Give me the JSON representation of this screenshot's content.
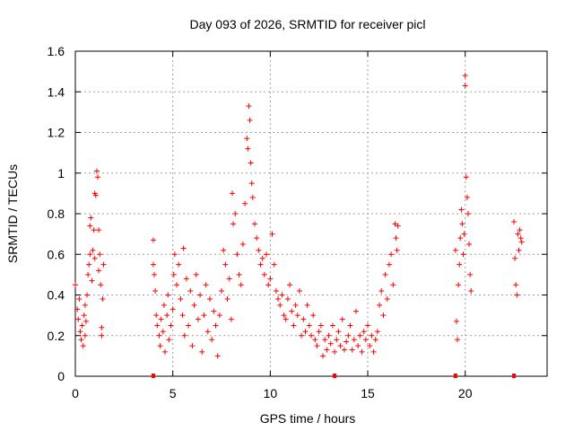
{
  "chart_data": {
    "type": "scatter",
    "title": "Day 093 of 2026, SRMTID for receiver picl",
    "xlabel": "GPS time / hours",
    "ylabel": "SRMTID / TECUs",
    "xlim": [
      0,
      24.2
    ],
    "ylim": [
      0,
      1.6
    ],
    "x_ticks": [
      0,
      5,
      10,
      15,
      20
    ],
    "x_tick_labels": [
      "0",
      "5",
      "10",
      "15",
      "20"
    ],
    "y_ticks": [
      0,
      0.2,
      0.4,
      0.6,
      0.8,
      1.0,
      1.2,
      1.4,
      1.6
    ],
    "y_tick_labels": [
      "0",
      "0.2",
      "0.4",
      "0.6",
      "0.8",
      "1",
      "1.2",
      "1.4",
      "1.6"
    ],
    "grid": true,
    "marker": "+",
    "marker_color": "#ff0000",
    "series": [
      {
        "name": "SRMTID",
        "points": [
          [
            0.0,
            0.45
          ],
          [
            0.1,
            0.33
          ],
          [
            0.15,
            0.28
          ],
          [
            0.2,
            0.38
          ],
          [
            0.25,
            0.22
          ],
          [
            0.3,
            0.18
          ],
          [
            0.35,
            0.25
          ],
          [
            0.4,
            0.15
          ],
          [
            0.45,
            0.3
          ],
          [
            0.5,
            0.2
          ],
          [
            0.5,
            0.35
          ],
          [
            0.55,
            0.27
          ],
          [
            0.6,
            0.4
          ],
          [
            0.65,
            0.5
          ],
          [
            0.7,
            0.55
          ],
          [
            0.75,
            0.6
          ],
          [
            0.75,
            0.74
          ],
          [
            0.8,
            0.78
          ],
          [
            0.85,
            0.47
          ],
          [
            0.9,
            0.62
          ],
          [
            0.95,
            0.72
          ],
          [
            1.0,
            0.58
          ],
          [
            1.0,
            0.9
          ],
          [
            1.05,
            0.89
          ],
          [
            1.1,
            1.01
          ],
          [
            1.15,
            0.98
          ],
          [
            1.2,
            0.72
          ],
          [
            1.2,
            0.52
          ],
          [
            1.25,
            0.6
          ],
          [
            1.3,
            0.45
          ],
          [
            1.35,
            0.24
          ],
          [
            1.35,
            0.2
          ],
          [
            1.4,
            0.38
          ],
          [
            1.45,
            0.55
          ],
          [
            4.0,
            0.67
          ],
          [
            4.0,
            0.55
          ],
          [
            4.05,
            0.5
          ],
          [
            4.1,
            0.42
          ],
          [
            4.15,
            0.3
          ],
          [
            4.2,
            0.25
          ],
          [
            4.3,
            0.2
          ],
          [
            4.35,
            0.15
          ],
          [
            4.4,
            0.28
          ],
          [
            4.5,
            0.22
          ],
          [
            4.55,
            0.35
          ],
          [
            4.6,
            0.12
          ],
          [
            4.7,
            0.3
          ],
          [
            4.75,
            0.4
          ],
          [
            4.8,
            0.18
          ],
          [
            4.9,
            0.25
          ],
          [
            5.0,
            0.33
          ],
          [
            5.05,
            0.5
          ],
          [
            5.1,
            0.6
          ],
          [
            5.2,
            0.45
          ],
          [
            5.3,
            0.55
          ],
          [
            5.4,
            0.38
          ],
          [
            5.5,
            0.3
          ],
          [
            5.55,
            0.63
          ],
          [
            5.6,
            0.2
          ],
          [
            5.7,
            0.48
          ],
          [
            5.8,
            0.25
          ],
          [
            5.9,
            0.42
          ],
          [
            6.0,
            0.15
          ],
          [
            6.1,
            0.35
          ],
          [
            6.2,
            0.5
          ],
          [
            6.3,
            0.28
          ],
          [
            6.4,
            0.4
          ],
          [
            6.5,
            0.12
          ],
          [
            6.6,
            0.3
          ],
          [
            6.7,
            0.45
          ],
          [
            6.8,
            0.22
          ],
          [
            6.9,
            0.38
          ],
          [
            7.0,
            0.18
          ],
          [
            7.1,
            0.32
          ],
          [
            7.2,
            0.25
          ],
          [
            7.3,
            0.1
          ],
          [
            7.4,
            0.3
          ],
          [
            7.5,
            0.42
          ],
          [
            7.6,
            0.62
          ],
          [
            7.7,
            0.55
          ],
          [
            7.8,
            0.38
          ],
          [
            7.9,
            0.48
          ],
          [
            8.0,
            0.28
          ],
          [
            8.05,
            0.9
          ],
          [
            8.1,
            0.75
          ],
          [
            8.2,
            0.8
          ],
          [
            8.3,
            0.6
          ],
          [
            8.4,
            0.5
          ],
          [
            8.5,
            0.45
          ],
          [
            8.6,
            0.65
          ],
          [
            8.7,
            0.85
          ],
          [
            8.8,
            1.17
          ],
          [
            8.85,
            1.12
          ],
          [
            8.9,
            1.33
          ],
          [
            8.95,
            1.26
          ],
          [
            9.0,
            1.05
          ],
          [
            9.05,
            0.95
          ],
          [
            9.1,
            0.88
          ],
          [
            9.2,
            0.75
          ],
          [
            9.3,
            0.68
          ],
          [
            9.4,
            0.62
          ],
          [
            9.5,
            0.55
          ],
          [
            9.6,
            0.58
          ],
          [
            9.7,
            0.5
          ],
          [
            9.8,
            0.6
          ],
          [
            9.9,
            0.45
          ],
          [
            10.0,
            0.48
          ],
          [
            10.1,
            0.7
          ],
          [
            10.2,
            0.55
          ],
          [
            10.3,
            0.42
          ],
          [
            10.4,
            0.38
          ],
          [
            10.5,
            0.35
          ],
          [
            10.6,
            0.4
          ],
          [
            10.7,
            0.3
          ],
          [
            10.8,
            0.28
          ],
          [
            10.9,
            0.38
          ],
          [
            11.0,
            0.45
          ],
          [
            11.1,
            0.32
          ],
          [
            11.2,
            0.25
          ],
          [
            11.3,
            0.35
          ],
          [
            11.4,
            0.3
          ],
          [
            11.5,
            0.42
          ],
          [
            11.6,
            0.2
          ],
          [
            11.7,
            0.28
          ],
          [
            11.8,
            0.22
          ],
          [
            11.9,
            0.35
          ],
          [
            12.0,
            0.25
          ],
          [
            12.1,
            0.2
          ],
          [
            12.2,
            0.3
          ],
          [
            12.3,
            0.18
          ],
          [
            12.4,
            0.15
          ],
          [
            12.5,
            0.22
          ],
          [
            12.6,
            0.25
          ],
          [
            12.7,
            0.1
          ],
          [
            12.8,
            0.18
          ],
          [
            12.9,
            0.13
          ],
          [
            13.0,
            0.2
          ],
          [
            13.1,
            0.16
          ],
          [
            13.2,
            0.25
          ],
          [
            13.3,
            0.12
          ],
          [
            13.4,
            0.18
          ],
          [
            13.5,
            0.22
          ],
          [
            13.6,
            0.15
          ],
          [
            13.7,
            0.28
          ],
          [
            13.8,
            0.13
          ],
          [
            13.9,
            0.17
          ],
          [
            14.0,
            0.2
          ],
          [
            14.1,
            0.25
          ],
          [
            14.2,
            0.13
          ],
          [
            14.3,
            0.18
          ],
          [
            14.4,
            0.32
          ],
          [
            14.5,
            0.15
          ],
          [
            14.6,
            0.2
          ],
          [
            14.7,
            0.12
          ],
          [
            14.8,
            0.22
          ],
          [
            14.9,
            0.18
          ],
          [
            15.0,
            0.25
          ],
          [
            15.1,
            0.15
          ],
          [
            15.2,
            0.2
          ],
          [
            15.3,
            0.12
          ],
          [
            15.4,
            0.18
          ],
          [
            15.5,
            0.22
          ],
          [
            15.6,
            0.35
          ],
          [
            15.7,
            0.42
          ],
          [
            15.8,
            0.3
          ],
          [
            15.9,
            0.5
          ],
          [
            16.0,
            0.38
          ],
          [
            16.1,
            0.55
          ],
          [
            16.2,
            0.6
          ],
          [
            16.3,
            0.45
          ],
          [
            16.4,
            0.75
          ],
          [
            16.45,
            0.68
          ],
          [
            16.5,
            0.62
          ],
          [
            16.55,
            0.74
          ],
          [
            19.5,
            0.62
          ],
          [
            19.55,
            0.27
          ],
          [
            19.6,
            0.18
          ],
          [
            19.65,
            0.45
          ],
          [
            19.7,
            0.55
          ],
          [
            19.75,
            0.68
          ],
          [
            19.8,
            0.82
          ],
          [
            19.85,
            0.75
          ],
          [
            19.9,
            0.6
          ],
          [
            19.95,
            0.7
          ],
          [
            20.0,
            1.48
          ],
          [
            20.0,
            1.43
          ],
          [
            20.05,
            0.98
          ],
          [
            20.1,
            0.88
          ],
          [
            20.15,
            0.8
          ],
          [
            20.2,
            0.65
          ],
          [
            20.25,
            0.5
          ],
          [
            20.3,
            0.42
          ],
          [
            22.5,
            0.76
          ],
          [
            22.55,
            0.58
          ],
          [
            22.6,
            0.45
          ],
          [
            22.65,
            0.4
          ],
          [
            22.7,
            0.7
          ],
          [
            22.75,
            0.62
          ],
          [
            22.8,
            0.72
          ],
          [
            22.85,
            0.68
          ],
          [
            22.9,
            0.66
          ]
        ]
      }
    ],
    "zero_markers": [
      4.0,
      13.3,
      19.5,
      22.5
    ]
  }
}
